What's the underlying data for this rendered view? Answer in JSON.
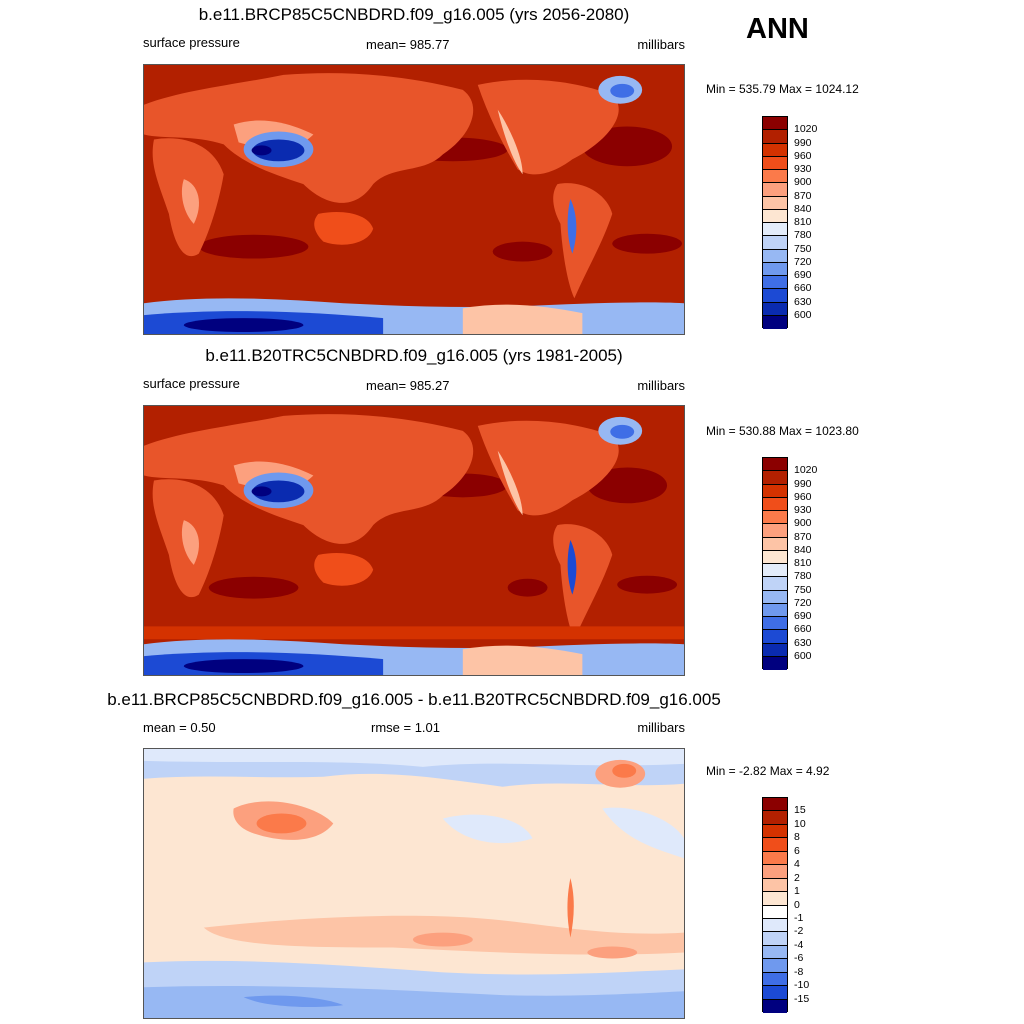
{
  "season": "ANN",
  "panels": [
    {
      "title": "b.e11.BRCP85C5CNBDRD.f09_g16.005 (yrs 2056-2080)",
      "left_label": "surface pressure",
      "center_label": "mean= 985.77",
      "right_label": "millibars",
      "minmax": "Min = 535.79 Max = 1024.12",
      "colorbar": {
        "labels": [
          "1020",
          "990",
          "960",
          "930",
          "900",
          "870",
          "840",
          "810",
          "780",
          "750",
          "720",
          "690",
          "660",
          "630",
          "600"
        ],
        "colors": [
          "#8b0000",
          "#b22000",
          "#d43200",
          "#f04e1a",
          "#fb7a4a",
          "#fca07e",
          "#fdc4a6",
          "#fde6d2",
          "#e3ecfa",
          "#bfd3f7",
          "#97b8f3",
          "#6f99ee",
          "#3f6ee6",
          "#1c4ad4",
          "#0a2bb0",
          "#00007f"
        ]
      }
    },
    {
      "title": "b.e11.B20TRC5CNBDRD.f09_g16.005 (yrs 1981-2005)",
      "left_label": "surface pressure",
      "center_label": "mean= 985.27",
      "right_label": "millibars",
      "minmax": "Min = 530.88 Max = 1023.80",
      "colorbar": {
        "labels": [
          "1020",
          "990",
          "960",
          "930",
          "900",
          "870",
          "840",
          "810",
          "780",
          "750",
          "720",
          "690",
          "660",
          "630",
          "600"
        ],
        "colors": [
          "#8b0000",
          "#b22000",
          "#d43200",
          "#f04e1a",
          "#fb7a4a",
          "#fca07e",
          "#fdc4a6",
          "#fde6d2",
          "#e3ecfa",
          "#bfd3f7",
          "#97b8f3",
          "#6f99ee",
          "#3f6ee6",
          "#1c4ad4",
          "#0a2bb0",
          "#00007f"
        ]
      }
    },
    {
      "title": "b.e11.BRCP85C5CNBDRD.f09_g16.005 - b.e11.B20TRC5CNBDRD.f09_g16.005",
      "left_label": "mean =   0.50",
      "center_label": "rmse =   1.01",
      "right_label": "millibars",
      "minmax": "Min =  -2.82 Max =   4.92",
      "colorbar": {
        "labels": [
          "15",
          "10",
          "8",
          "6",
          "4",
          "2",
          "1",
          "0",
          "-1",
          "-2",
          "-4",
          "-6",
          "-8",
          "-10",
          "-15"
        ],
        "colors": [
          "#8b0000",
          "#b22000",
          "#d43200",
          "#f04e1a",
          "#fb7a4a",
          "#fca07e",
          "#fdc4a6",
          "#fde6d2",
          "#ffffff",
          "#dfe9fb",
          "#bfd3f7",
          "#97b8f3",
          "#6f99ee",
          "#3f6ee6",
          "#1c4ad4",
          "#00007f"
        ]
      }
    }
  ]
}
